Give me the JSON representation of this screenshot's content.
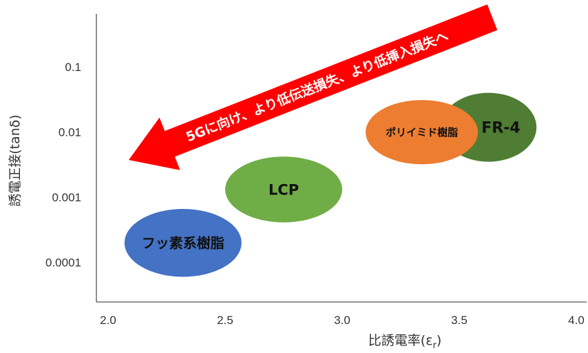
{
  "chart_data": {
    "type": "scatter",
    "title": "",
    "xlabel": "比誘電率",
    "xlabel_symbol": "ε",
    "xlabel_subscript": "r",
    "ylabel": "誘電正接(tanδ)",
    "xlim": [
      2.0,
      4.0
    ],
    "ylim": [
      2e-05,
      0.6
    ],
    "y_scale": "log",
    "grid": false,
    "x_ticks": [
      "2.0",
      "2.5",
      "3.0",
      "3.5",
      "4.0"
    ],
    "x_tick_values": [
      2.0,
      2.5,
      3.0,
      3.5,
      4.0
    ],
    "y_ticks": [
      "0.1",
      "0.01",
      "0.001",
      "0.0001"
    ],
    "y_tick_values": [
      0.1,
      0.01,
      0.001,
      0.0001
    ],
    "series": [
      {
        "name": "FR-4",
        "x": 3.63,
        "x_range": [
          3.42,
          3.83
        ],
        "y": 0.012,
        "y_range": [
          0.0035,
          0.04
        ],
        "color": "#4e7d33"
      },
      {
        "name": "ポリイミド樹脂",
        "x": 3.34,
        "x_range": [
          3.1,
          3.58
        ],
        "y": 0.01,
        "y_range": [
          0.0032,
          0.031
        ],
        "color": "#ed7d31"
      },
      {
        "name": "LCP",
        "x": 2.75,
        "x_range": [
          2.5,
          3.0
        ],
        "y": 0.0013,
        "y_range": [
          0.00041,
          0.0042
        ],
        "color": "#70ad47"
      },
      {
        "name": "フッ素系樹脂",
        "x": 2.32,
        "x_range": [
          2.07,
          2.57
        ],
        "y": 0.00021,
        "y_range": [
          6e-05,
          0.00066
        ],
        "color": "#4472c4"
      }
    ],
    "annotation": {
      "text": "5Gに向け、より低伝送損失、より低挿入損失へ",
      "color": "#ff0000",
      "from": [
        4.0,
        0.45
      ],
      "to": [
        2.09,
        0.0015
      ]
    }
  }
}
